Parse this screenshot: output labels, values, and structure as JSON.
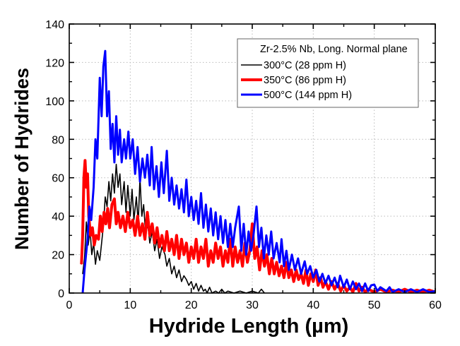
{
  "chart_data": {
    "type": "line",
    "xlabel": "Hydride Length (µm)",
    "ylabel": "Number of Hydrides",
    "xlim": [
      0,
      60
    ],
    "ylim": [
      0,
      140
    ],
    "xticks": [
      0,
      10,
      20,
      30,
      40,
      50,
      60
    ],
    "yticks": [
      0,
      20,
      40,
      60,
      80,
      100,
      120,
      140
    ],
    "grid": true,
    "legend": {
      "placement": "top-right",
      "title": "Zr-2.5% Nb, Long. Normal plane"
    },
    "series": [
      {
        "name": "300°C (28 ppm H)",
        "color": "#000000",
        "points": [
          [
            2.2,
            10
          ],
          [
            2.5,
            18
          ],
          [
            2.8,
            37
          ],
          [
            3.1,
            25
          ],
          [
            3.4,
            33
          ],
          [
            3.7,
            20
          ],
          [
            4,
            26
          ],
          [
            4.3,
            15
          ],
          [
            4.6,
            22
          ],
          [
            5,
            17
          ],
          [
            5.3,
            26
          ],
          [
            5.6,
            35
          ],
          [
            5.9,
            50
          ],
          [
            6.2,
            45
          ],
          [
            6.5,
            58
          ],
          [
            6.8,
            48
          ],
          [
            7.1,
            62
          ],
          [
            7.4,
            52
          ],
          [
            7.7,
            67
          ],
          [
            8,
            55
          ],
          [
            8.3,
            62
          ],
          [
            8.6,
            46
          ],
          [
            9,
            58
          ],
          [
            9.3,
            42
          ],
          [
            9.6,
            56
          ],
          [
            10,
            40
          ],
          [
            10.3,
            54
          ],
          [
            10.6,
            38
          ],
          [
            11,
            50
          ],
          [
            11.3,
            36
          ],
          [
            11.6,
            60
          ],
          [
            11.9,
            40
          ],
          [
            12.2,
            46
          ],
          [
            12.5,
            32
          ],
          [
            12.9,
            35
          ],
          [
            13.2,
            26
          ],
          [
            13.6,
            32
          ],
          [
            14,
            22
          ],
          [
            14.4,
            28
          ],
          [
            14.8,
            18
          ],
          [
            15.2,
            24
          ],
          [
            15.7,
            20
          ],
          [
            16,
            14
          ],
          [
            16.4,
            18
          ],
          [
            16.8,
            10
          ],
          [
            17.2,
            14
          ],
          [
            17.6,
            8
          ],
          [
            18,
            12
          ],
          [
            18.4,
            6
          ],
          [
            18.8,
            9
          ],
          [
            19.2,
            7
          ],
          [
            19.6,
            4
          ],
          [
            20,
            6
          ],
          [
            20.4,
            2
          ],
          [
            20.8,
            5
          ],
          [
            21.2,
            1
          ],
          [
            21.6,
            4
          ],
          [
            22,
            1
          ],
          [
            22.3,
            2
          ],
          [
            22.6,
            0
          ],
          [
            23,
            3
          ],
          [
            23.4,
            0
          ],
          [
            24,
            1
          ],
          [
            24.5,
            0
          ],
          [
            25,
            2
          ],
          [
            25.5,
            0
          ],
          [
            26,
            1
          ],
          [
            27,
            0
          ],
          [
            28,
            1
          ],
          [
            29,
            0
          ],
          [
            30,
            1
          ],
          [
            31,
            0
          ],
          [
            31.5,
            2
          ],
          [
            32,
            0
          ]
        ]
      },
      {
        "name": "350°C (86 ppm H)",
        "color": "#ff0000",
        "points": [
          [
            2,
            15
          ],
          [
            2.2,
            30
          ],
          [
            2.4,
            60
          ],
          [
            2.6,
            69
          ],
          [
            2.8,
            55
          ],
          [
            3,
            62
          ],
          [
            3.2,
            40
          ],
          [
            3.5,
            30
          ],
          [
            3.8,
            34
          ],
          [
            4.1,
            25
          ],
          [
            4.4,
            30
          ],
          [
            4.8,
            28
          ],
          [
            5.1,
            40
          ],
          [
            5.4,
            32
          ],
          [
            5.7,
            42
          ],
          [
            6,
            36
          ],
          [
            6.3,
            44
          ],
          [
            6.6,
            34
          ],
          [
            7,
            46
          ],
          [
            7.4,
            49
          ],
          [
            7.7,
            36
          ],
          [
            8,
            42
          ],
          [
            8.4,
            34
          ],
          [
            8.8,
            40
          ],
          [
            9.2,
            32
          ],
          [
            9.6,
            42
          ],
          [
            10,
            34
          ],
          [
            10.4,
            38
          ],
          [
            10.8,
            30
          ],
          [
            11.2,
            40
          ],
          [
            11.6,
            30
          ],
          [
            12,
            36
          ],
          [
            12.4,
            28
          ],
          [
            12.8,
            42
          ],
          [
            13.2,
            30
          ],
          [
            13.6,
            36
          ],
          [
            14,
            26
          ],
          [
            14.4,
            34
          ],
          [
            14.8,
            24
          ],
          [
            15.2,
            30
          ],
          [
            15.6,
            22
          ],
          [
            16,
            32
          ],
          [
            16.4,
            22
          ],
          [
            16.8,
            28
          ],
          [
            17.2,
            20
          ],
          [
            17.6,
            30
          ],
          [
            18,
            18
          ],
          [
            18.4,
            28
          ],
          [
            18.8,
            20
          ],
          [
            19.2,
            26
          ],
          [
            19.6,
            16
          ],
          [
            20,
            24
          ],
          [
            20.4,
            18
          ],
          [
            20.8,
            28
          ],
          [
            21.2,
            16
          ],
          [
            21.6,
            24
          ],
          [
            22,
            18
          ],
          [
            22.4,
            28
          ],
          [
            22.8,
            14
          ],
          [
            23.2,
            22
          ],
          [
            23.6,
            16
          ],
          [
            24,
            26
          ],
          [
            24.4,
            18
          ],
          [
            24.8,
            24
          ],
          [
            25.2,
            14
          ],
          [
            25.6,
            22
          ],
          [
            26,
            16
          ],
          [
            26.4,
            28
          ],
          [
            26.8,
            14
          ],
          [
            27.2,
            24
          ],
          [
            27.6,
            16
          ],
          [
            28,
            22
          ],
          [
            28.4,
            14
          ],
          [
            28.8,
            26
          ],
          [
            29.2,
            16
          ],
          [
            29.6,
            22
          ],
          [
            30,
            36
          ],
          [
            30.4,
            18
          ],
          [
            30.8,
            24
          ],
          [
            31.2,
            12
          ],
          [
            31.6,
            22
          ],
          [
            32,
            14
          ],
          [
            32.4,
            20
          ],
          [
            32.8,
            10
          ],
          [
            33.2,
            18
          ],
          [
            33.6,
            10
          ],
          [
            34,
            16
          ],
          [
            34.4,
            9
          ],
          [
            34.8,
            14
          ],
          [
            35.2,
            8
          ],
          [
            35.6,
            16
          ],
          [
            36,
            8
          ],
          [
            36.4,
            12
          ],
          [
            36.8,
            6
          ],
          [
            37.2,
            12
          ],
          [
            37.6,
            7
          ],
          [
            38,
            10
          ],
          [
            38.4,
            5
          ],
          [
            38.8,
            12
          ],
          [
            39.2,
            4
          ],
          [
            39.6,
            10
          ],
          [
            40,
            6
          ],
          [
            40.4,
            12
          ],
          [
            40.8,
            4
          ],
          [
            41.2,
            8
          ],
          [
            41.6,
            3
          ],
          [
            42,
            6
          ],
          [
            42.5,
            2
          ],
          [
            43,
            6
          ],
          [
            43.5,
            2
          ],
          [
            44,
            5
          ],
          [
            44.5,
            1
          ],
          [
            45,
            4
          ],
          [
            45.5,
            1
          ],
          [
            46,
            3
          ],
          [
            46.5,
            0.5
          ],
          [
            47,
            5
          ],
          [
            47.5,
            1
          ],
          [
            48,
            3
          ],
          [
            48.5,
            0.5
          ],
          [
            49,
            2
          ],
          [
            50,
            0.5
          ],
          [
            51,
            2
          ],
          [
            52,
            0.5
          ],
          [
            53,
            1.5
          ],
          [
            54,
            0.5
          ],
          [
            55,
            2
          ],
          [
            56,
            0.5
          ],
          [
            57,
            1.5
          ],
          [
            58,
            0.5
          ],
          [
            59,
            1.5
          ],
          [
            60,
            0.5
          ]
        ]
      },
      {
        "name": "500°C (144 ppm H)",
        "color": "#0000ff",
        "points": [
          [
            2.2,
            0
          ],
          [
            2.5,
            12
          ],
          [
            3,
            28
          ],
          [
            3.3,
            45
          ],
          [
            3.6,
            38
          ],
          [
            4,
            55
          ],
          [
            4.3,
            80
          ],
          [
            4.6,
            70
          ],
          [
            5,
            112
          ],
          [
            5.3,
            92
          ],
          [
            5.6,
            118
          ],
          [
            5.9,
            126
          ],
          [
            6.2,
            92
          ],
          [
            6.5,
            105
          ],
          [
            6.8,
            75
          ],
          [
            7.1,
            88
          ],
          [
            7.4,
            68
          ],
          [
            7.7,
            92
          ],
          [
            8,
            72
          ],
          [
            8.3,
            85
          ],
          [
            8.6,
            68
          ],
          [
            9,
            80
          ],
          [
            9.3,
            70
          ],
          [
            9.7,
            84
          ],
          [
            10,
            70
          ],
          [
            10.4,
            80
          ],
          [
            10.8,
            62
          ],
          [
            11.2,
            76
          ],
          [
            11.6,
            58
          ],
          [
            12,
            70
          ],
          [
            12.4,
            60
          ],
          [
            12.8,
            72
          ],
          [
            13.2,
            56
          ],
          [
            13.5,
            76
          ],
          [
            13.9,
            54
          ],
          [
            14.3,
            66
          ],
          [
            14.7,
            50
          ],
          [
            15.1,
            68
          ],
          [
            15.5,
            52
          ],
          [
            16,
            74
          ],
          [
            16.4,
            48
          ],
          [
            16.8,
            60
          ],
          [
            17.2,
            46
          ],
          [
            17.6,
            56
          ],
          [
            18,
            44
          ],
          [
            18.4,
            54
          ],
          [
            18.8,
            42
          ],
          [
            19.2,
            59
          ],
          [
            19.6,
            40
          ],
          [
            20,
            50
          ],
          [
            20.4,
            38
          ],
          [
            20.8,
            48
          ],
          [
            21.2,
            36
          ],
          [
            21.6,
            52
          ],
          [
            22,
            34
          ],
          [
            22.4,
            46
          ],
          [
            22.8,
            32
          ],
          [
            23.2,
            44
          ],
          [
            23.6,
            30
          ],
          [
            24,
            42
          ],
          [
            24.4,
            28
          ],
          [
            24.8,
            40
          ],
          [
            25.2,
            26
          ],
          [
            25.6,
            38
          ],
          [
            26,
            24
          ],
          [
            26.4,
            36
          ],
          [
            26.8,
            24
          ],
          [
            27.2,
            34
          ],
          [
            27.8,
            45
          ],
          [
            28.2,
            22
          ],
          [
            28.6,
            36
          ],
          [
            29,
            20
          ],
          [
            29.4,
            32
          ],
          [
            29.8,
            22
          ],
          [
            30.2,
            30
          ],
          [
            30.7,
            45
          ],
          [
            31.1,
            24
          ],
          [
            31.5,
            34
          ],
          [
            31.9,
            18
          ],
          [
            32.3,
            30
          ],
          [
            32.7,
            20
          ],
          [
            33.1,
            32
          ],
          [
            33.5,
            18
          ],
          [
            34,
            26
          ],
          [
            34.5,
            16
          ],
          [
            34.8,
            28
          ],
          [
            35.2,
            14
          ],
          [
            35.6,
            22
          ],
          [
            36,
            12
          ],
          [
            36.5,
            20
          ],
          [
            37,
            12
          ],
          [
            37.5,
            18
          ],
          [
            38,
            10
          ],
          [
            38.6,
            16.5
          ],
          [
            39,
            10
          ],
          [
            39.5,
            14
          ],
          [
            40,
            8
          ],
          [
            40.5,
            12
          ],
          [
            41,
            6
          ],
          [
            41.5,
            10
          ],
          [
            42,
            5
          ],
          [
            42.5,
            9
          ],
          [
            43,
            4
          ],
          [
            43.5,
            8
          ],
          [
            44,
            3
          ],
          [
            44.4,
            9
          ],
          [
            45,
            3
          ],
          [
            45.5,
            7
          ],
          [
            46,
            2
          ],
          [
            46.5,
            6
          ],
          [
            47,
            2
          ],
          [
            47.5,
            5
          ],
          [
            48,
            1
          ],
          [
            48.5,
            5
          ],
          [
            49,
            1
          ],
          [
            49.5,
            4
          ],
          [
            50,
            4.4
          ],
          [
            50.5,
            1
          ],
          [
            51,
            3
          ],
          [
            52,
            1
          ],
          [
            52.5,
            3
          ],
          [
            53,
            0.5
          ],
          [
            54,
            2
          ],
          [
            55,
            0.5
          ],
          [
            56,
            2
          ],
          [
            57,
            0.5
          ],
          [
            58,
            2
          ],
          [
            59,
            0.5
          ],
          [
            60,
            1
          ]
        ]
      }
    ]
  }
}
